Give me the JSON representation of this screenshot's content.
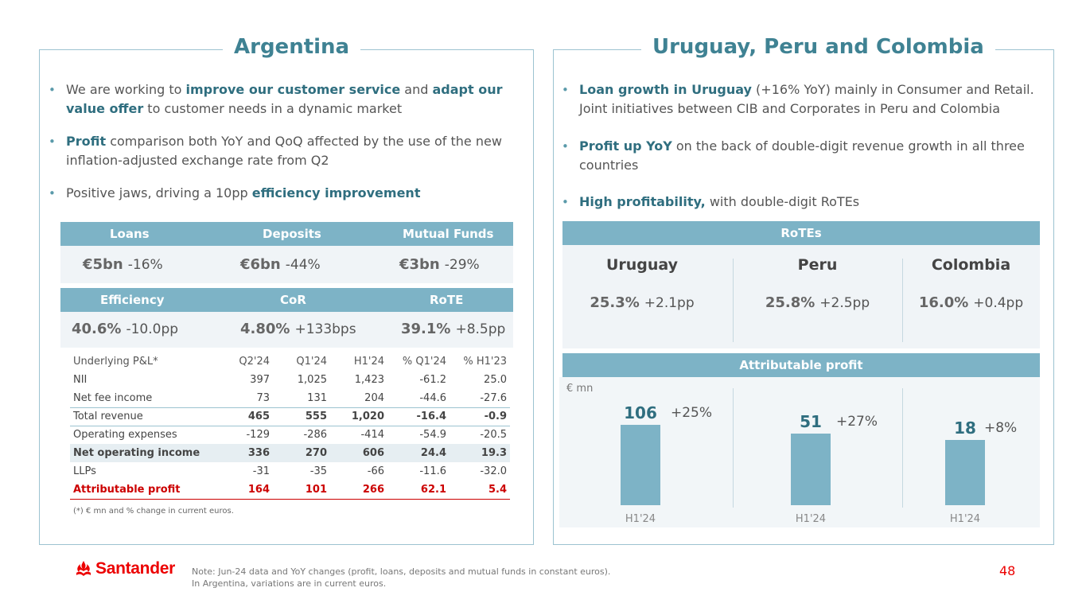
{
  "argentina": {
    "title": "Argentina",
    "bullets": [
      {
        "parts": [
          "We are working to ",
          "improve our customer service",
          " and ",
          "adapt our value offer",
          " to customer needs in a dynamic market"
        ]
      },
      {
        "parts": [
          "Profit",
          " comparison both YoY and QoQ affected by the use of the new inflation-adjusted exchange rate from Q2"
        ]
      },
      {
        "parts": [
          "Positive jaws, driving a 10pp ",
          "efficiency improvement"
        ]
      }
    ],
    "kpi1": {
      "headers": [
        "Loans",
        "Deposits",
        "Mutual Funds"
      ],
      "values": [
        {
          "v": "€5bn",
          "c": "-16%"
        },
        {
          "v": "€6bn",
          "c": "-44%"
        },
        {
          "v": "€3bn",
          "c": "-29%"
        }
      ]
    },
    "kpi2": {
      "headers": [
        "Efficiency",
        "CoR",
        "RoTE"
      ],
      "values": [
        {
          "v": "40.6%",
          "c": "-10.0pp"
        },
        {
          "v": "4.80%",
          "c": "+133bps"
        },
        {
          "v": "39.1%",
          "c": "+8.5pp"
        }
      ]
    },
    "pl": {
      "header": [
        "Underlying P&L*",
        "Q2'24",
        "Q1'24",
        "H1'24",
        "% Q1'24",
        "% H1'23"
      ],
      "rows": [
        [
          "NII",
          "397",
          "1,025",
          "1,423",
          "-61.2",
          "25.0"
        ],
        [
          "Net fee income",
          "73",
          "131",
          "204",
          "-44.6",
          "-27.6"
        ],
        [
          "Total revenue",
          "465",
          "555",
          "1,020",
          "-16.4",
          "-0.9"
        ],
        [
          "Operating expenses",
          "-129",
          "-286",
          "-414",
          "-54.9",
          "-20.5"
        ],
        [
          "Net operating income",
          "336",
          "270",
          "606",
          "24.4",
          "19.3"
        ],
        [
          "LLPs",
          "-31",
          "-35",
          "-66",
          "-11.6",
          "-32.0"
        ],
        [
          "Attributable profit",
          "164",
          "101",
          "266",
          "62.1",
          "5.4"
        ]
      ],
      "footnote": "(*) € mn and % change in current euros."
    }
  },
  "upc": {
    "title": "Uruguay, Peru and Colombia",
    "bullets": [
      {
        "parts": [
          "Loan growth in Uruguay",
          " (+16% YoY) mainly in Consumer and Retail. Joint initiatives between CIB and Corporates in Peru and Colombia"
        ]
      },
      {
        "parts": [
          "Profit up YoY",
          " on the back of double-digit revenue growth in all three countries"
        ]
      },
      {
        "parts": [
          "High profitability,",
          " with double-digit RoTEs"
        ]
      }
    ],
    "rotes": {
      "header": "RoTEs",
      "countries": [
        {
          "name": "Uruguay",
          "v": "25.3%",
          "c": "+2.1pp"
        },
        {
          "name": "Peru",
          "v": "25.8%",
          "c": "+2.5pp"
        },
        {
          "name": "Colombia",
          "v": "16.0%",
          "c": "+0.4pp"
        }
      ]
    },
    "profit": {
      "header": "Attributable profit",
      "unit": "€ mn"
    }
  },
  "chart_data": {
    "type": "bar",
    "title": "Attributable profit",
    "ylabel": "€ mn",
    "categories": [
      "H1'24",
      "H1'24",
      "H1'24"
    ],
    "series": [
      {
        "name": "Attributable profit",
        "values": [
          106,
          51,
          18
        ]
      }
    ],
    "labels": [
      "106",
      "51",
      "18"
    ],
    "changes": [
      "+25%",
      "+27%",
      "+8%"
    ],
    "countries": [
      "Uruguay",
      "Peru",
      "Colombia"
    ]
  },
  "footer": {
    "brand": "Santander",
    "note_line1": "Note: Jun-24 data and YoY changes (profit, loans, deposits and mutual funds in constant euros).",
    "note_line2": "In Argentina, variations are in current euros.",
    "page": "48"
  },
  "colors": {
    "accent": "#3f8293",
    "header_bg": "#7db3c6",
    "red": "#ec0000"
  }
}
